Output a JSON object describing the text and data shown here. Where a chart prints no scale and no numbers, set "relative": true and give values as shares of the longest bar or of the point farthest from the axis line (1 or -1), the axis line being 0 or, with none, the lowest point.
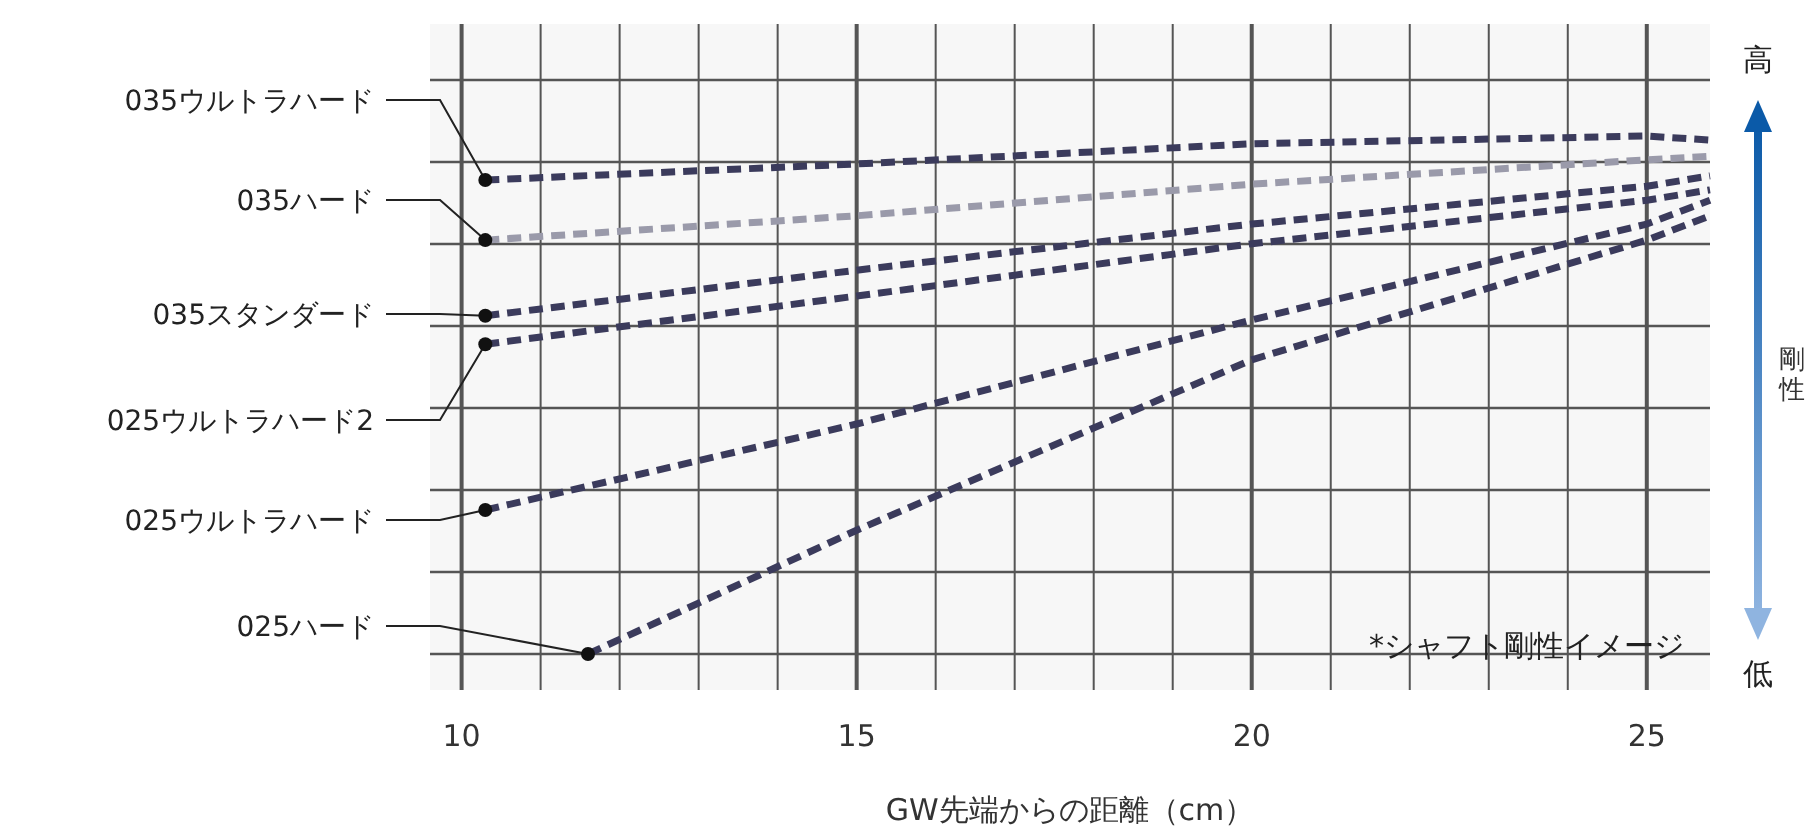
{
  "chart_data": {
    "type": "line",
    "relative": true,
    "xlabel": "GW先端からの距離（cm）",
    "ylabel": "剛性",
    "xlim": [
      9.6,
      25.8
    ],
    "xticks": [
      10,
      15,
      20,
      25
    ],
    "grid": true,
    "legend": false,
    "line_style": "dashed",
    "annotations": [
      "高",
      "低",
      "*シャフト剛性イメージ"
    ],
    "series": [
      {
        "name": "035ウルトラハード",
        "color": "#3b3b5c",
        "x": [
          10.3,
          15,
          20,
          25,
          25.8
        ],
        "values": [
          0.915,
          0.946,
          0.985,
          1.0,
          0.992
        ]
      },
      {
        "name": "035ハード",
        "color": "#9a9aaa",
        "x": [
          10.3,
          15,
          20,
          25,
          25.8
        ],
        "values": [
          0.799,
          0.846,
          0.907,
          0.954,
          0.961
        ]
      },
      {
        "name": "035スタンダード",
        "color": "#3b3b5c",
        "x": [
          10.3,
          15,
          20,
          25,
          25.8
        ],
        "values": [
          0.653,
          0.741,
          0.83,
          0.903,
          0.923
        ]
      },
      {
        "name": "025ウルトラハード2",
        "color": "#3b3b5c",
        "x": [
          10.3,
          15,
          20,
          25,
          25.8
        ],
        "values": [
          0.598,
          0.691,
          0.792,
          0.876,
          0.896
        ]
      },
      {
        "name": "025ウルトラハード",
        "color": "#3b3b5c",
        "x": [
          10.3,
          15,
          20,
          25,
          25.8
        ],
        "values": [
          0.278,
          0.444,
          0.645,
          0.83,
          0.876
        ]
      },
      {
        "name": "025ハード",
        "color": "#3b3b5c",
        "x": [
          11.6,
          15,
          20,
          25,
          25.8
        ],
        "values": [
          0,
          0.239,
          0.568,
          0.799,
          0.846
        ]
      }
    ]
  }
}
